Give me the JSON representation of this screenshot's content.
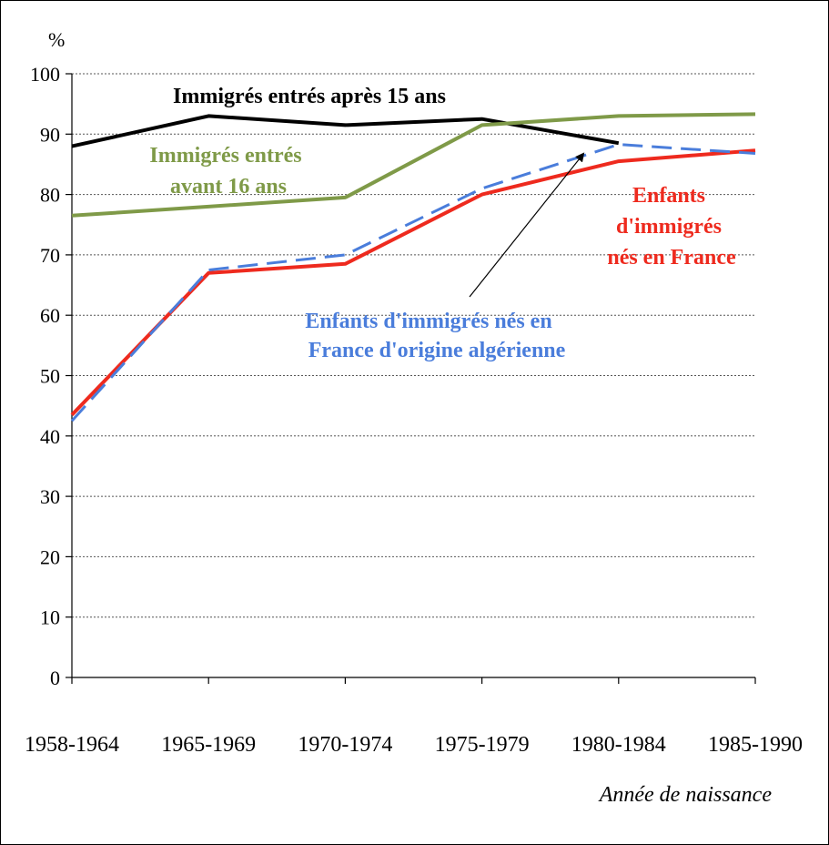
{
  "chart_data": {
    "type": "line",
    "y_unit": "%",
    "xlabel": "Année de naissance",
    "ylabel": "",
    "categories": [
      "1958-1964",
      "1965-1969",
      "1970-1974",
      "1975-1979",
      "1980-1984",
      "1985-1990"
    ],
    "ylim": [
      0,
      100
    ],
    "yticks": [
      0,
      10,
      20,
      30,
      40,
      50,
      60,
      70,
      80,
      90,
      100
    ],
    "grid": true,
    "series": [
      {
        "key": "after15",
        "name": "Immigrés entrés après 15 ans",
        "color": "#000000",
        "dash": "solid",
        "values": [
          88,
          93,
          91.5,
          92.5,
          88.5,
          null
        ]
      },
      {
        "key": "before16",
        "name": "Immigrés entrés avant 16 ans",
        "color": "#7f9a48",
        "dash": "solid",
        "values": [
          76.5,
          78,
          79.5,
          91.5,
          93,
          93.3
        ]
      },
      {
        "key": "children",
        "name": "Enfants d'immigrés nés en France",
        "color": "#ee2a1e",
        "dash": "solid",
        "values": [
          43.5,
          67,
          68.5,
          80,
          85.5,
          87.3
        ]
      },
      {
        "key": "algerian",
        "name": "Enfants d'immigrés nés en France d'origine algérienne",
        "color": "#4a7ddb",
        "dash": "dashed",
        "values": [
          42.5,
          67.5,
          70,
          81,
          88.3,
          86.8
        ]
      }
    ],
    "annotations": {
      "after15": [
        "Immigrés entrés après 15 ans"
      ],
      "before16": [
        "Immigrés entrés",
        "avant 16 ans"
      ],
      "children": [
        "Enfants",
        "d'immigrés",
        "nés en France"
      ],
      "algerian": [
        "Enfants d'immigrés nés en",
        "France d'origine algérienne"
      ]
    }
  }
}
